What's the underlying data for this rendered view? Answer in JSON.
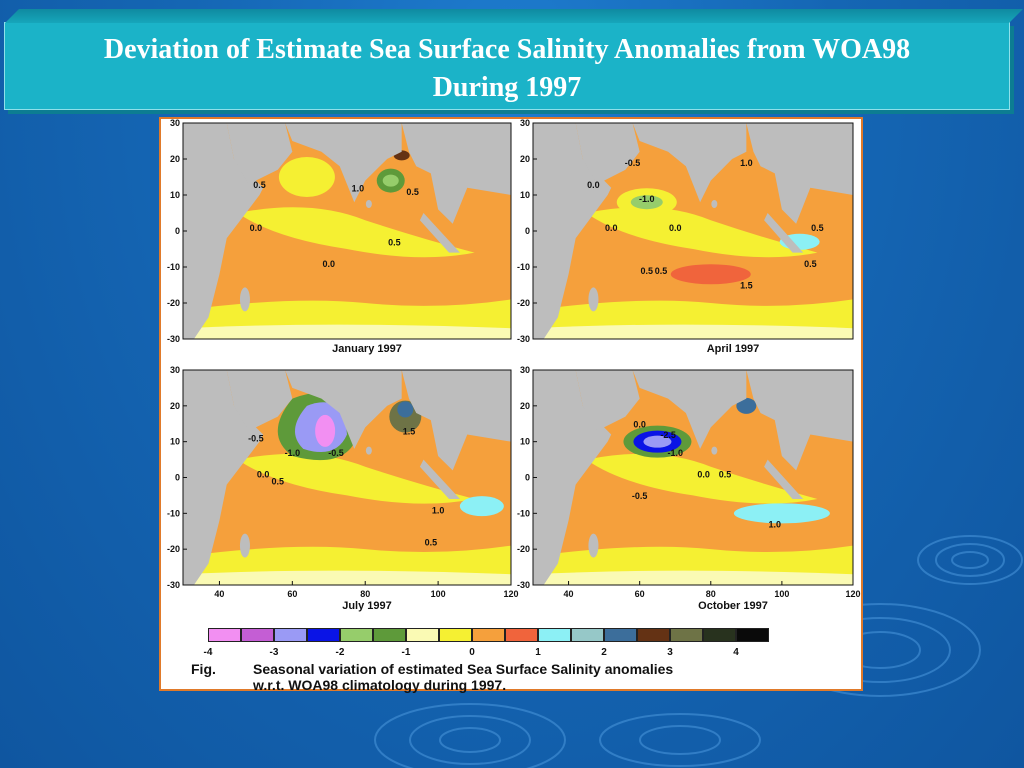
{
  "slide": {
    "title_line1": "Deviation of Estimate Sea Surface Salinity Anomalies from WOA98",
    "title_line2": "During 1997"
  },
  "figure": {
    "panels": [
      {
        "title": "January 1997",
        "contour_labels": [
          "0.5",
          "1.0",
          "0.5",
          "0.0",
          "0.0",
          "0.5"
        ]
      },
      {
        "title": "April 1997",
        "contour_labels": [
          "0.0",
          "-0.5",
          "-1.0",
          "0.0",
          "0.0",
          "1.0",
          "0.5",
          "0.5",
          "0.5",
          "1.5",
          "0.5"
        ]
      },
      {
        "title": "July 1997",
        "contour_labels": [
          "-0.5",
          "-1.0",
          "-0.5",
          "0.0",
          "0.5",
          "1.5",
          "1.0",
          "0.5"
        ]
      },
      {
        "title": "October 1997",
        "contour_labels": [
          "0.0",
          "-2.5",
          "-1.0",
          "0.0",
          "0.5",
          "-0.5",
          "1.0"
        ]
      }
    ],
    "y_ticks": [
      "30",
      "20",
      "10",
      "0",
      "-10",
      "-20",
      "-30"
    ],
    "x_ticks": [
      "40",
      "60",
      "80",
      "100",
      "120"
    ],
    "legend": {
      "colors": [
        "#f28ff2",
        "#c45ed4",
        "#9a9af5",
        "#0a14e6",
        "#96cd6b",
        "#5e9a3a",
        "#fafab4",
        "#f5f032",
        "#f5a03c",
        "#f0643c",
        "#8cf0f5",
        "#96c8c8",
        "#3c6e9b",
        "#643214",
        "#6e7346",
        "#28321e",
        "#0a0a0a"
      ],
      "labels": [
        "-4",
        "-3",
        "-2",
        "-1",
        "0",
        "1",
        "2",
        "3",
        "4"
      ]
    },
    "caption_prefix": "Fig.",
    "caption_line1": "Seasonal variation of estimated Sea Surface Salinity anomalies",
    "caption_line2": "w.r.t. WOA98 climatology during 1997."
  },
  "colors": {
    "title_bar": "#1bb3c8",
    "figure_border": "#e07a2a",
    "land": "#bdbdbd",
    "ocean_orange": "#f5a03c",
    "ocean_yellow": "#f5f032",
    "ocean_cream": "#fafab4"
  }
}
